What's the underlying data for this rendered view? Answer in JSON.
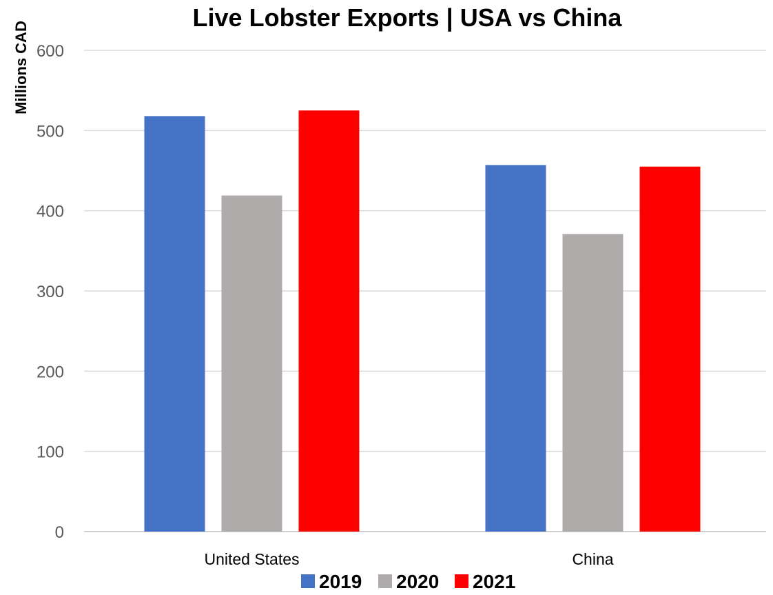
{
  "chart_data": {
    "type": "bar",
    "title": "Live Lobster Exports | USA vs China",
    "xlabel": "",
    "ylabel": "Millions CAD",
    "ylim": [
      0,
      600
    ],
    "yticks": [
      0,
      100,
      200,
      300,
      400,
      500,
      600
    ],
    "categories": [
      "United States",
      "China"
    ],
    "series": [
      {
        "name": "2019",
        "values": [
          518,
          457
        ],
        "color": "#4472c4"
      },
      {
        "name": "2020",
        "values": [
          419,
          371
        ],
        "color": "#afabab"
      },
      {
        "name": "2021",
        "values": [
          525,
          455
        ],
        "color": "#ff0000"
      }
    ],
    "grid": true,
    "legend_position": "bottom"
  }
}
